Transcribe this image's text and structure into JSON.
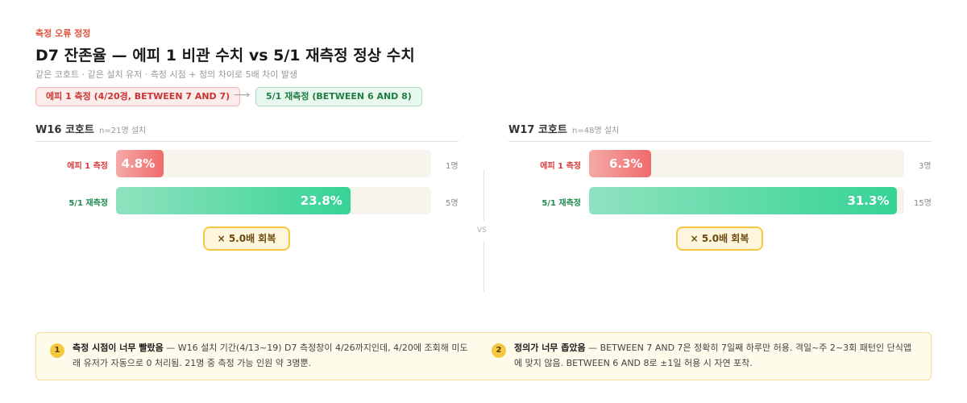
{
  "eyebrow": "측정 오류 정정",
  "title": "D7 잔존율 — 에피 1 비관 수치 vs 5/1 재측정 정상 수치",
  "subtitle": "같은 코호트 · 같은 설치 유저 · 측정 시점 + 정의 차이로 5배 차이 발생",
  "tags": [
    "에피 1 측정 (4/20경, BETWEEN 7 AND 7)",
    "5/1 재측정 (BETWEEN 6 AND 8)"
  ],
  "vs": "VS",
  "chart_data": [
    {
      "type": "bar",
      "title": "W16 코호트",
      "subtitle": "n=21명 설치",
      "categories": [
        "에피 1 측정",
        "5/1 재측정"
      ],
      "values": [
        4.8,
        23.8
      ],
      "value_labels": [
        "4.8%",
        "23.8%"
      ],
      "counts": [
        "1명",
        "5명"
      ],
      "colors": [
        "#f06a6a",
        "#35d396"
      ],
      "xlim": [
        0,
        32
      ],
      "annotation": "× 5.0배 회복"
    },
    {
      "type": "bar",
      "title": "W17 코호트",
      "subtitle": "n=48명 설치",
      "categories": [
        "에피 1 측정",
        "5/1 재측정"
      ],
      "values": [
        6.3,
        31.3
      ],
      "value_labels": [
        "6.3%",
        "31.3%"
      ],
      "counts": [
        "3명",
        "15명"
      ],
      "colors": [
        "#f06a6a",
        "#35d396"
      ],
      "xlim": [
        0,
        32
      ],
      "annotation": "× 5.0배 회복"
    }
  ],
  "notes": [
    {
      "num": 1,
      "title": "측정 시점이 너무 빨랐음",
      "text": "— W16 설치 기간(4/13~19) D7 측정창이 4/26까지인데, 4/20에 조회해 미도래 유저가 자동으로 0 처리됨. 21명 중 측정 가능 인원 약 3명뿐."
    },
    {
      "num": 2,
      "title": "정의가 너무 좁았음",
      "text": "— BETWEEN 7 AND 7은 정확히 7일째 하루만 허용. 격일~주 2~3회 패턴인 단식앱에 맞지 않음. BETWEEN 6 AND 8로 ±1일 허용 시 자연 포착."
    }
  ]
}
